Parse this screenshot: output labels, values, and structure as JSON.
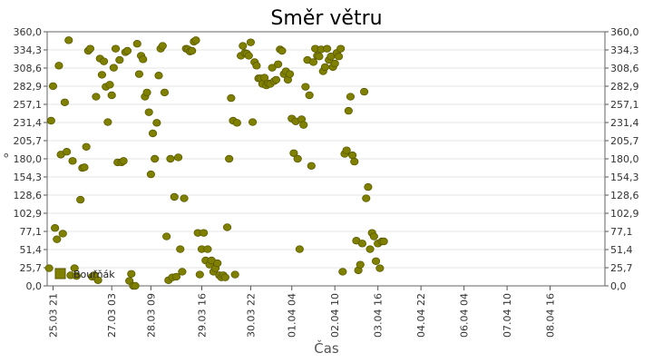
{
  "chart_data": {
    "type": "scatter",
    "title": "Směr větru",
    "xlabel": "Čas",
    "ylabel": "°",
    "ylim": [
      0,
      360
    ],
    "xlim": [
      -0.15,
      14.1
    ],
    "y_ticks": [
      "0,0",
      "25,7",
      "51,4",
      "77,1",
      "102,9",
      "128,6",
      "154,3",
      "180,0",
      "205,7",
      "231,4",
      "257,1",
      "282,9",
      "308,6",
      "334,3",
      "360,0"
    ],
    "x_ticks": [
      {
        "x": 0,
        "label": "25.03 21"
      },
      {
        "x": 1.5,
        "label": "27.03 03"
      },
      {
        "x": 2.5,
        "label": "28.03 09"
      },
      {
        "x": 3.8,
        "label": "29.03 16"
      },
      {
        "x": 5.05,
        "label": "30.03 22"
      },
      {
        "x": 6.1,
        "label": "01.04 04"
      },
      {
        "x": 7.2,
        "label": "02.04 10"
      },
      {
        "x": 8.3,
        "label": "03.04 16"
      },
      {
        "x": 9.4,
        "label": "04.04 22"
      },
      {
        "x": 10.5,
        "label": "06.04 04"
      },
      {
        "x": 11.6,
        "label": "07.04 10"
      },
      {
        "x": 12.7,
        "label": "08.04 16"
      }
    ],
    "grid": true,
    "legend_position": "bottom-left",
    "series": [
      {
        "name": "Bouřňák",
        "color": "#808000",
        "points": [
          [
            -0.1,
            25
          ],
          [
            -0.05,
            234
          ],
          [
            0,
            283
          ],
          [
            0.05,
            82
          ],
          [
            0.1,
            66
          ],
          [
            0.15,
            312
          ],
          [
            0.2,
            186
          ],
          [
            0.25,
            74
          ],
          [
            0.3,
            260
          ],
          [
            0.35,
            190
          ],
          [
            0.4,
            348
          ],
          [
            0.45,
            15
          ],
          [
            0.5,
            177
          ],
          [
            0.55,
            25
          ],
          [
            0.6,
            14
          ],
          [
            0.7,
            122
          ],
          [
            0.75,
            167
          ],
          [
            0.8,
            168
          ],
          [
            0.85,
            197
          ],
          [
            0.9,
            333
          ],
          [
            0.95,
            336
          ],
          [
            1.0,
            13
          ],
          [
            1.05,
            15
          ],
          [
            1.1,
            268
          ],
          [
            1.15,
            8
          ],
          [
            1.2,
            322
          ],
          [
            1.25,
            299
          ],
          [
            1.3,
            318
          ],
          [
            1.35,
            282
          ],
          [
            1.4,
            232
          ],
          [
            1.45,
            285
          ],
          [
            1.5,
            270
          ],
          [
            1.55,
            309
          ],
          [
            1.6,
            336
          ],
          [
            1.65,
            175
          ],
          [
            1.7,
            320
          ],
          [
            1.75,
            175
          ],
          [
            1.8,
            177
          ],
          [
            1.85,
            331
          ],
          [
            1.9,
            333
          ],
          [
            1.95,
            7
          ],
          [
            2.0,
            17
          ],
          [
            2.05,
            0
          ],
          [
            2.1,
            0
          ],
          [
            2.15,
            343
          ],
          [
            2.2,
            300
          ],
          [
            2.25,
            326
          ],
          [
            2.3,
            321
          ],
          [
            2.35,
            268
          ],
          [
            2.4,
            274
          ],
          [
            2.45,
            246
          ],
          [
            2.5,
            158
          ],
          [
            2.55,
            216
          ],
          [
            2.6,
            180
          ],
          [
            2.65,
            231
          ],
          [
            2.7,
            298
          ],
          [
            2.75,
            336
          ],
          [
            2.8,
            340
          ],
          [
            2.85,
            274
          ],
          [
            2.9,
            70
          ],
          [
            2.95,
            8
          ],
          [
            3.0,
            180
          ],
          [
            3.05,
            12
          ],
          [
            3.1,
            126
          ],
          [
            3.15,
            13
          ],
          [
            3.2,
            182
          ],
          [
            3.25,
            52
          ],
          [
            3.3,
            20
          ],
          [
            3.35,
            124
          ],
          [
            3.4,
            336
          ],
          [
            3.45,
            335
          ],
          [
            3.5,
            332
          ],
          [
            3.55,
            333
          ],
          [
            3.6,
            346
          ],
          [
            3.65,
            348
          ],
          [
            3.7,
            75
          ],
          [
            3.75,
            16
          ],
          [
            3.8,
            52
          ],
          [
            3.85,
            75
          ],
          [
            3.9,
            36
          ],
          [
            3.95,
            52
          ],
          [
            4.0,
            30
          ],
          [
            4.05,
            36
          ],
          [
            4.1,
            20
          ],
          [
            4.15,
            25
          ],
          [
            4.2,
            32
          ],
          [
            4.25,
            15
          ],
          [
            4.3,
            12
          ],
          [
            4.35,
            15
          ],
          [
            4.4,
            12
          ],
          [
            4.45,
            83
          ],
          [
            4.5,
            180
          ],
          [
            4.55,
            266
          ],
          [
            4.6,
            234
          ],
          [
            4.65,
            16
          ],
          [
            4.7,
            231
          ],
          [
            4.8,
            326
          ],
          [
            4.85,
            340
          ],
          [
            4.9,
            330
          ],
          [
            4.95,
            329
          ],
          [
            5.0,
            326
          ],
          [
            5.05,
            345
          ],
          [
            5.1,
            232
          ],
          [
            5.15,
            317
          ],
          [
            5.2,
            312
          ],
          [
            5.25,
            294
          ],
          [
            5.3,
            294
          ],
          [
            5.35,
            286
          ],
          [
            5.4,
            295
          ],
          [
            5.45,
            284
          ],
          [
            5.5,
            287
          ],
          [
            5.55,
            286
          ],
          [
            5.6,
            309
          ],
          [
            5.65,
            290
          ],
          [
            5.7,
            292
          ],
          [
            5.75,
            314
          ],
          [
            5.8,
            335
          ],
          [
            5.85,
            333
          ],
          [
            5.9,
            300
          ],
          [
            5.95,
            304
          ],
          [
            6.0,
            292
          ],
          [
            6.05,
            300
          ],
          [
            6.1,
            237
          ],
          [
            6.15,
            188
          ],
          [
            6.2,
            233
          ],
          [
            6.25,
            180
          ],
          [
            6.3,
            52
          ],
          [
            6.35,
            236
          ],
          [
            6.4,
            228
          ],
          [
            6.45,
            282
          ],
          [
            6.5,
            320
          ],
          [
            6.55,
            270
          ],
          [
            6.6,
            170
          ],
          [
            6.65,
            317
          ],
          [
            6.7,
            336
          ],
          [
            6.75,
            326
          ],
          [
            6.8,
            325
          ],
          [
            6.85,
            335
          ],
          [
            6.9,
            304
          ],
          [
            6.95,
            310
          ],
          [
            7.0,
            336
          ],
          [
            7.05,
            320
          ],
          [
            7.1,
            325
          ],
          [
            7.15,
            310
          ],
          [
            7.2,
            315
          ],
          [
            7.25,
            330
          ],
          [
            7.3,
            325
          ],
          [
            7.35,
            336
          ],
          [
            7.4,
            20
          ],
          [
            7.45,
            187
          ],
          [
            7.5,
            192
          ],
          [
            7.55,
            248
          ],
          [
            7.6,
            268
          ],
          [
            7.65,
            185
          ],
          [
            7.7,
            176
          ],
          [
            7.75,
            64
          ],
          [
            7.8,
            22
          ],
          [
            7.85,
            30
          ],
          [
            7.9,
            60
          ],
          [
            7.95,
            275
          ],
          [
            8.0,
            124
          ],
          [
            8.05,
            140
          ],
          [
            8.1,
            52
          ],
          [
            8.15,
            75
          ],
          [
            8.2,
            70
          ],
          [
            8.25,
            35
          ],
          [
            8.3,
            60
          ],
          [
            8.35,
            25
          ],
          [
            8.4,
            63
          ],
          [
            8.45,
            63
          ]
        ]
      }
    ]
  }
}
